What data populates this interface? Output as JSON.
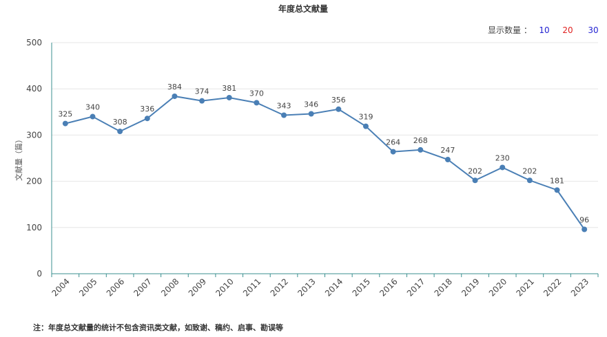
{
  "display_options": {
    "label": "显示数量 ：",
    "options": [
      {
        "label": "10",
        "color": "#1f1fd1"
      },
      {
        "label": "20",
        "color": "#e0201f"
      },
      {
        "label": "30",
        "color": "#1f1fd1"
      }
    ]
  },
  "note": "注：年度总文献量的统计不包含资讯类文献，如致谢、稿约、启事、勘误等",
  "colors": {
    "line": "#4a7fb5",
    "grid": "#e6e6e6",
    "axis": "#3a8f8f"
  },
  "chart_data": {
    "type": "line",
    "title": "年度总文献量",
    "xlabel": "",
    "ylabel": "文献量（篇）",
    "ylim": [
      0,
      500
    ],
    "yticks": [
      0,
      100,
      200,
      300,
      400,
      500
    ],
    "grid": true,
    "categories": [
      "2004",
      "2005",
      "2006",
      "2007",
      "2008",
      "2009",
      "2010",
      "2011",
      "2012",
      "2013",
      "2014",
      "2015",
      "2016",
      "2017",
      "2018",
      "2019",
      "2020",
      "2021",
      "2022",
      "2023"
    ],
    "series": [
      {
        "values": [
          325,
          340,
          308,
          336,
          384,
          374,
          381,
          370,
          343,
          346,
          356,
          319,
          264,
          268,
          247,
          202,
          230,
          202,
          181,
          96
        ]
      }
    ]
  }
}
